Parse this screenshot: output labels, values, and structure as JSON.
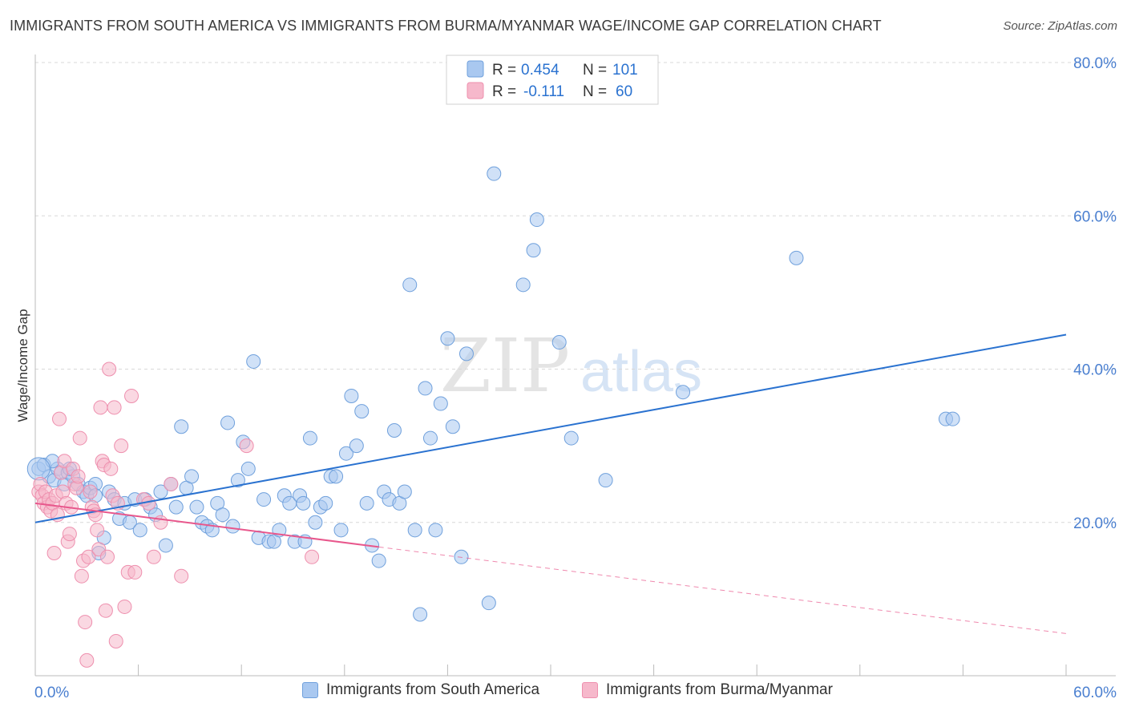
{
  "title": "IMMIGRANTS FROM SOUTH AMERICA VS IMMIGRANTS FROM BURMA/MYANMAR WAGE/INCOME GAP CORRELATION CHART",
  "source": "Source: ZipAtlas.com",
  "watermark": {
    "zip": "ZIP",
    "atlas": "atlas"
  },
  "legend_top": {
    "rows": [
      {
        "r_label": "R =",
        "r_value": "0.454",
        "n_label": "N =",
        "n_value": "101"
      },
      {
        "r_label": "R =",
        "r_value": "-0.111",
        "n_label": "N =",
        "n_value": "60"
      }
    ]
  },
  "legend_bottom": {
    "items": [
      "Immigrants from South America",
      "Immigrants from Burma/Myanmar"
    ]
  },
  "colors": {
    "blue_fill": "#a9c8f0",
    "blue_stroke": "#6fa0dc",
    "blue_line": "#2a72d0",
    "pink_fill": "#f6b8cb",
    "pink_stroke": "#ee8fae",
    "pink_line": "#e8578c",
    "tick_label": "#4a7fd0",
    "grid": "#d8d8d8"
  },
  "chart_data": {
    "type": "scatter",
    "title": "IMMIGRANTS FROM SOUTH AMERICA VS IMMIGRANTS FROM BURMA/MYANMAR WAGE/INCOME GAP CORRELATION CHART",
    "xlabel": "",
    "ylabel": "Wage/Income Gap",
    "xlim": [
      0,
      60
    ],
    "ylim": [
      0,
      80
    ],
    "x_tick_labels": [
      "0.0%",
      "60.0%"
    ],
    "y_ticks": [
      20,
      40,
      60,
      80
    ],
    "y_tick_labels": [
      "20.0%",
      "40.0%",
      "60.0%",
      "80.0%"
    ],
    "grid": true,
    "legend_position": "top-center",
    "series": [
      {
        "name": "Immigrants from South America",
        "r": 0.454,
        "n": 101,
        "trend": {
          "x": [
            0,
            60
          ],
          "y": [
            20.0,
            44.5
          ],
          "style": "solid"
        },
        "points": [
          [
            0.2,
            27.0
          ],
          [
            0.5,
            27.5
          ],
          [
            0.8,
            26.0
          ],
          [
            1.1,
            25.5
          ],
          [
            1.3,
            27.0
          ],
          [
            1.5,
            26.5
          ],
          [
            1.7,
            25.0
          ],
          [
            1.9,
            26.5
          ],
          [
            2.2,
            26.0
          ],
          [
            2.5,
            25.0
          ],
          [
            2.8,
            24.0
          ],
          [
            3.0,
            23.5
          ],
          [
            3.2,
            24.5
          ],
          [
            3.5,
            25.0
          ],
          [
            3.7,
            16.0
          ],
          [
            4.0,
            18.0
          ],
          [
            4.3,
            24.0
          ],
          [
            4.6,
            23.0
          ],
          [
            4.9,
            20.5
          ],
          [
            5.2,
            22.5
          ],
          [
            5.5,
            20.0
          ],
          [
            5.8,
            23.0
          ],
          [
            6.1,
            19.0
          ],
          [
            6.4,
            23.0
          ],
          [
            6.7,
            22.0
          ],
          [
            7.0,
            21.0
          ],
          [
            7.3,
            24.0
          ],
          [
            7.6,
            17.0
          ],
          [
            7.9,
            25.0
          ],
          [
            8.2,
            22.0
          ],
          [
            8.5,
            32.5
          ],
          [
            8.8,
            24.5
          ],
          [
            9.1,
            26.0
          ],
          [
            9.4,
            22.0
          ],
          [
            9.7,
            20.0
          ],
          [
            10.0,
            19.5
          ],
          [
            10.3,
            19.0
          ],
          [
            10.6,
            22.5
          ],
          [
            10.9,
            21.0
          ],
          [
            11.2,
            33.0
          ],
          [
            11.5,
            19.5
          ],
          [
            11.8,
            25.5
          ],
          [
            12.1,
            30.5
          ],
          [
            12.4,
            27.0
          ],
          [
            12.7,
            41.0
          ],
          [
            13.0,
            18.0
          ],
          [
            13.3,
            23.0
          ],
          [
            13.6,
            17.5
          ],
          [
            13.9,
            17.5
          ],
          [
            14.2,
            19.0
          ],
          [
            14.5,
            23.5
          ],
          [
            14.8,
            22.5
          ],
          [
            15.1,
            17.5
          ],
          [
            15.4,
            23.5
          ],
          [
            15.7,
            17.5
          ],
          [
            16.0,
            31.0
          ],
          [
            16.3,
            20.0
          ],
          [
            16.6,
            22.0
          ],
          [
            16.9,
            22.5
          ],
          [
            17.2,
            26.0
          ],
          [
            17.5,
            26.0
          ],
          [
            17.8,
            19.0
          ],
          [
            18.1,
            29.0
          ],
          [
            18.4,
            36.5
          ],
          [
            18.7,
            30.0
          ],
          [
            19.0,
            34.5
          ],
          [
            19.3,
            22.5
          ],
          [
            19.6,
            17.0
          ],
          [
            20.0,
            15.0
          ],
          [
            20.3,
            24.0
          ],
          [
            20.6,
            23.0
          ],
          [
            20.9,
            32.0
          ],
          [
            21.2,
            22.5
          ],
          [
            21.5,
            24.0
          ],
          [
            21.8,
            51.0
          ],
          [
            22.1,
            19.0
          ],
          [
            22.4,
            8.0
          ],
          [
            22.7,
            37.5
          ],
          [
            23.0,
            31.0
          ],
          [
            23.3,
            19.0
          ],
          [
            23.6,
            35.5
          ],
          [
            24.0,
            44.0
          ],
          [
            24.3,
            32.5
          ],
          [
            24.8,
            15.5
          ],
          [
            25.1,
            42.0
          ],
          [
            26.4,
            9.5
          ],
          [
            26.7,
            65.5
          ],
          [
            28.4,
            51.0
          ],
          [
            29.0,
            55.5
          ],
          [
            29.2,
            59.5
          ],
          [
            30.5,
            43.5
          ],
          [
            31.2,
            31.0
          ],
          [
            33.2,
            25.5
          ],
          [
            37.7,
            37.0
          ],
          [
            44.3,
            54.5
          ],
          [
            53.0,
            33.5
          ],
          [
            53.4,
            33.5
          ],
          [
            1.0,
            28.0
          ],
          [
            2.0,
            27.0
          ],
          [
            3.5,
            23.5
          ],
          [
            15.6,
            22.5
          ]
        ]
      },
      {
        "name": "Immigrants from Burma/Myanmar",
        "r": -0.111,
        "n": 60,
        "trend": {
          "x": [
            0,
            20
          ],
          "y": [
            22.5,
            16.8
          ],
          "style": "solid",
          "dashed_extension_to": [
            60,
            5.5
          ]
        },
        "points": [
          [
            0.2,
            24.0
          ],
          [
            0.3,
            25.0
          ],
          [
            0.4,
            23.5
          ],
          [
            0.5,
            22.5
          ],
          [
            0.6,
            24.0
          ],
          [
            0.7,
            22.0
          ],
          [
            0.8,
            23.0
          ],
          [
            0.9,
            21.5
          ],
          [
            1.0,
            22.5
          ],
          [
            1.1,
            16.0
          ],
          [
            1.2,
            23.5
          ],
          [
            1.3,
            21.0
          ],
          [
            1.4,
            33.5
          ],
          [
            1.5,
            26.5
          ],
          [
            1.6,
            24.0
          ],
          [
            1.7,
            28.0
          ],
          [
            1.8,
            22.5
          ],
          [
            1.9,
            17.5
          ],
          [
            2.0,
            18.5
          ],
          [
            2.1,
            22.0
          ],
          [
            2.2,
            27.0
          ],
          [
            2.3,
            25.0
          ],
          [
            2.4,
            24.5
          ],
          [
            2.5,
            26.0
          ],
          [
            2.6,
            31.0
          ],
          [
            2.7,
            13.0
          ],
          [
            2.8,
            15.0
          ],
          [
            2.9,
            7.0
          ],
          [
            3.0,
            2.0
          ],
          [
            3.1,
            15.5
          ],
          [
            3.2,
            24.0
          ],
          [
            3.3,
            22.0
          ],
          [
            3.4,
            21.5
          ],
          [
            3.5,
            21.0
          ],
          [
            3.6,
            19.0
          ],
          [
            3.7,
            16.5
          ],
          [
            3.8,
            35.0
          ],
          [
            3.9,
            28.0
          ],
          [
            4.0,
            27.5
          ],
          [
            4.1,
            8.5
          ],
          [
            4.2,
            15.5
          ],
          [
            4.3,
            40.0
          ],
          [
            4.4,
            27.0
          ],
          [
            4.5,
            23.5
          ],
          [
            4.6,
            35.0
          ],
          [
            4.7,
            4.5
          ],
          [
            4.8,
            22.5
          ],
          [
            5.0,
            30.0
          ],
          [
            5.2,
            9.0
          ],
          [
            5.4,
            13.5
          ],
          [
            5.6,
            36.5
          ],
          [
            5.8,
            13.5
          ],
          [
            6.3,
            23.0
          ],
          [
            6.6,
            22.5
          ],
          [
            6.9,
            15.5
          ],
          [
            7.3,
            20.0
          ],
          [
            7.9,
            25.0
          ],
          [
            8.5,
            13.0
          ],
          [
            12.3,
            30.0
          ],
          [
            16.1,
            15.5
          ]
        ]
      }
    ]
  }
}
